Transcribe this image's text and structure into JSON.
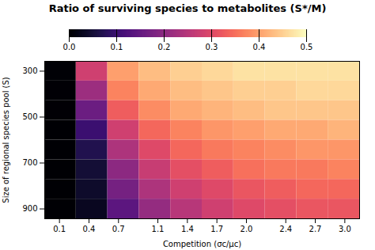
{
  "chart_data": {
    "type": "heatmap",
    "title": "Ratio of surviving species to metabolites (S*/M)",
    "xlabel": "Competition (σc/μc)",
    "ylabel": "Size of regional species pool (S)",
    "xlim": [
      -0.05,
      3.15
    ],
    "xticks": [
      0.1,
      0.4,
      0.7,
      1.1,
      1.4,
      1.7,
      {
        "value": 2.0,
        "label": "2.0"
      },
      2.4,
      2.7,
      {
        "value": 3.0,
        "label": "3.0"
      }
    ],
    "ylim": [
      942.8571428571429,
      257.14285714285717
    ],
    "yticks": [
      300,
      500,
      700,
      900
    ],
    "cells": [
      [
        0.005,
        0.28,
        0.4,
        0.43,
        0.45,
        0.46,
        0.47,
        0.47,
        0.47,
        0.47
      ],
      [
        0.003,
        0.22,
        0.37,
        0.41,
        0.43,
        0.44,
        0.45,
        0.45,
        0.46,
        0.46
      ],
      [
        0.002,
        0.16,
        0.33,
        0.38,
        0.41,
        0.42,
        0.43,
        0.44,
        0.44,
        0.44
      ],
      [
        0.001,
        0.1,
        0.28,
        0.34,
        0.37,
        0.39,
        0.4,
        0.41,
        0.41,
        0.42
      ],
      [
        0.001,
        0.07,
        0.24,
        0.3,
        0.34,
        0.36,
        0.37,
        0.38,
        0.39,
        0.39
      ],
      [
        0.001,
        0.05,
        0.2,
        0.27,
        0.31,
        0.33,
        0.35,
        0.36,
        0.36,
        0.37
      ],
      [
        0.001,
        0.04,
        0.17,
        0.24,
        0.28,
        0.3,
        0.32,
        0.33,
        0.34,
        0.34
      ],
      [
        0.001,
        0.03,
        0.14,
        0.21,
        0.25,
        0.28,
        0.3,
        0.31,
        0.32,
        0.32
      ]
    ],
    "colorbar_range": [
      0.0,
      0.5
    ],
    "colorbar_ticks": [
      {
        "value": 0.0,
        "label": "0.0"
      },
      0.1,
      0.2,
      0.3,
      0.4,
      0.5
    ],
    "grid": false
  }
}
